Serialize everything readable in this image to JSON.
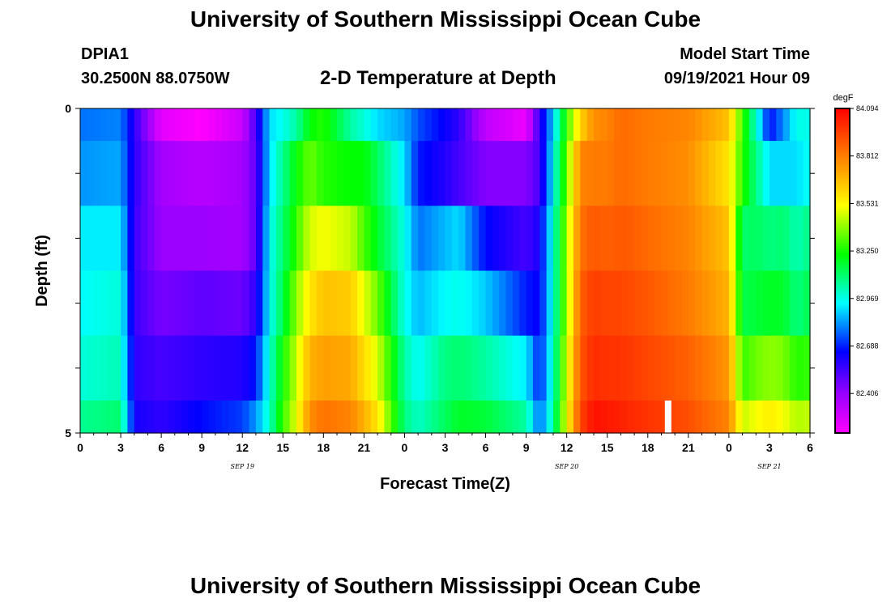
{
  "header": {
    "title": "University of Southern Mississippi Ocean Cube",
    "station_id": "DPIA1",
    "coords": "30.2500N  88.0750W",
    "subtitle": "2-D Temperature at Depth",
    "model_start_label": "Model Start Time",
    "model_start_value": "09/19/2021 Hour 09"
  },
  "footer": {
    "title": "University of Southern Mississippi Ocean Cube"
  },
  "chart_data": {
    "type": "heatmap",
    "title": "2-D Temperature at Depth",
    "xlabel": "Forecast Time(Z)",
    "ylabel": "Depth (ft)",
    "colorbar_unit": "degF",
    "colorbar_labels": [
      "84.094",
      "83.812",
      "83.531",
      "83.250",
      "82.969",
      "82.688",
      "82.406"
    ],
    "colorbar_range": [
      82.2,
      84.094
    ],
    "x_tick_labels": [
      "0",
      "3",
      "6",
      "9",
      "12",
      "15",
      "18",
      "21",
      "0",
      "3",
      "6",
      "9",
      "12",
      "15",
      "18",
      "21",
      "0",
      "3",
      "6"
    ],
    "x_hours": [
      0,
      3,
      6,
      9,
      12,
      15,
      18,
      21,
      24,
      27,
      30,
      33,
      36,
      39,
      42,
      45,
      48,
      51,
      54
    ],
    "date_labels": [
      {
        "text": "SEP 19",
        "hour": 12
      },
      {
        "text": "SEP 20",
        "hour": 36
      },
      {
        "text": "SEP 21",
        "hour": 51
      }
    ],
    "y_tick_labels": [
      "0",
      "5"
    ],
    "ylim": [
      0,
      5
    ],
    "xlim": [
      0,
      54
    ],
    "depth_rows": [
      0,
      1,
      2,
      3,
      4,
      5
    ],
    "x_samples": [
      0,
      3,
      4,
      6,
      9,
      12,
      13,
      14,
      15,
      16,
      17,
      18,
      20,
      21,
      22,
      24,
      25,
      27,
      28,
      30,
      33,
      34,
      35,
      36,
      37,
      38,
      39,
      40,
      42,
      45,
      48,
      49,
      50,
      51,
      52,
      53,
      54
    ],
    "temperatures": [
      [
        82.8,
        82.82,
        82.6,
        82.26,
        82.2,
        82.32,
        82.56,
        82.92,
        82.98,
        83.06,
        83.24,
        83.28,
        83.06,
        83.0,
        82.92,
        82.86,
        82.76,
        82.66,
        82.6,
        82.34,
        82.24,
        82.6,
        82.9,
        83.3,
        83.62,
        83.78,
        83.8,
        83.86,
        83.82,
        83.8,
        83.66,
        83.3,
        83.02,
        82.68,
        82.82,
        82.98,
        82.98
      ],
      [
        82.84,
        82.86,
        82.6,
        82.4,
        82.36,
        82.4,
        82.52,
        82.92,
        83.08,
        83.24,
        83.36,
        83.28,
        83.24,
        83.24,
        83.14,
        82.92,
        82.7,
        82.62,
        82.56,
        82.46,
        82.46,
        82.56,
        82.96,
        83.36,
        83.8,
        83.82,
        83.82,
        83.86,
        83.82,
        83.78,
        83.58,
        83.28,
        83.1,
        82.92,
        82.92,
        82.92,
        82.98
      ],
      [
        82.94,
        82.94,
        82.58,
        82.42,
        82.42,
        82.4,
        82.52,
        82.96,
        83.12,
        83.3,
        83.48,
        83.52,
        83.46,
        83.32,
        83.2,
        82.98,
        82.8,
        82.88,
        82.92,
        82.68,
        82.56,
        82.64,
        83.0,
        83.42,
        83.84,
        83.9,
        83.88,
        83.9,
        83.86,
        83.8,
        83.66,
        83.12,
        83.14,
        83.1,
        83.12,
        83.04,
        83.1
      ],
      [
        82.96,
        83.0,
        82.58,
        82.48,
        82.52,
        82.5,
        82.6,
        82.96,
        83.16,
        83.4,
        83.58,
        83.66,
        83.64,
        83.5,
        83.36,
        82.98,
        82.88,
        82.96,
        82.98,
        82.9,
        82.7,
        82.66,
        83.0,
        83.42,
        83.88,
        83.96,
        83.94,
        83.94,
        83.9,
        83.82,
        83.7,
        83.16,
        83.18,
        83.2,
        83.2,
        83.1,
        83.16
      ],
      [
        83.0,
        83.04,
        82.6,
        82.56,
        82.6,
        82.62,
        82.7,
        83.0,
        83.26,
        83.46,
        83.7,
        83.74,
        83.72,
        83.6,
        83.48,
        83.06,
        82.96,
        83.1,
        83.12,
        83.06,
        82.94,
        82.7,
        83.02,
        83.48,
        83.9,
        84.0,
        83.98,
        83.98,
        83.94,
        83.88,
        83.76,
        83.3,
        83.36,
        83.4,
        83.38,
        83.28,
        83.3
      ],
      [
        83.08,
        83.12,
        82.64,
        82.6,
        82.68,
        82.74,
        82.84,
        83.02,
        83.3,
        83.5,
        83.78,
        83.84,
        83.8,
        83.7,
        83.58,
        83.1,
        83.02,
        83.14,
        83.2,
        83.18,
        83.06,
        82.78,
        83.06,
        83.52,
        83.94,
        84.06,
        84.04,
        84.02,
        83.98,
        83.92,
        83.8,
        83.46,
        83.52,
        83.56,
        83.52,
        83.44,
        83.46
      ]
    ],
    "missing_cell": {
      "hour": 43.5,
      "depth_from": 4.5,
      "depth_to": 5
    }
  }
}
